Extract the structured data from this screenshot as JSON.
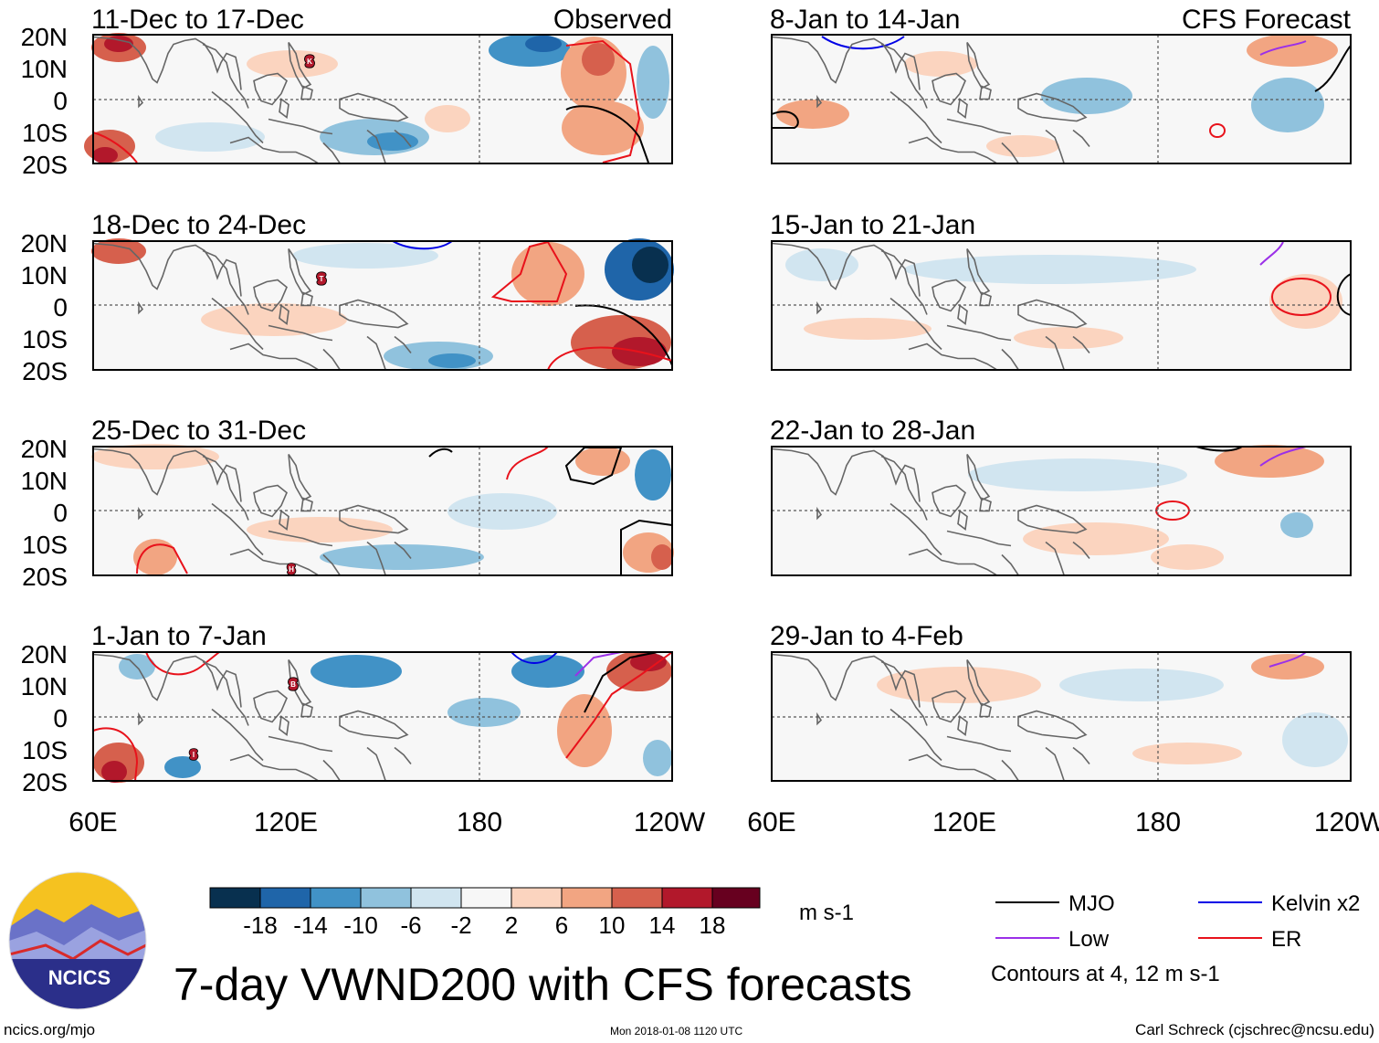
{
  "figure": {
    "title": "7-day VWND200 with CFS forecasts",
    "colors": {
      "contour_levels": [
        -18,
        -14,
        -10,
        -6,
        -2,
        2,
        6,
        10,
        14,
        18
      ],
      "palette": [
        "#08304f",
        "#1f65a9",
        "#4192c6",
        "#90c2dd",
        "#d1e5f0",
        "#f7f7f7",
        "#fbd4bf",
        "#f2a582",
        "#d6604d",
        "#b2182b",
        "#67001f"
      ],
      "coast": "#666666",
      "mjo": "#000000",
      "kelvin": "#0000e6",
      "low": "#9b30e8",
      "er": "#e8121b"
    }
  },
  "axes": {
    "lat_labels": [
      "20N",
      "10N",
      "0",
      "10S",
      "20S"
    ],
    "lon_labels": [
      "60E",
      "120E",
      "180",
      "120W"
    ]
  },
  "panels_left": [
    {
      "period": "11-Dec to 17-Dec",
      "tag": "Observed"
    },
    {
      "period": "18-Dec to 24-Dec"
    },
    {
      "period": "25-Dec to 31-Dec"
    },
    {
      "period": "1-Jan to 7-Jan"
    }
  ],
  "panels_right": [
    {
      "period": "8-Jan to 14-Jan",
      "tag": "CFS Forecast"
    },
    {
      "period": "15-Jan to 21-Jan"
    },
    {
      "period": "22-Jan to 28-Jan"
    },
    {
      "period": "29-Jan to 4-Feb"
    }
  ],
  "colorbar": {
    "unit": "m s-1",
    "tick_labels": [
      "-18",
      "-14",
      "-10",
      "-6",
      "-2",
      "2",
      "6",
      "10",
      "14",
      "18"
    ]
  },
  "legend": {
    "mjo": "MJO",
    "kelvin": "Kelvin x2",
    "low": "Low",
    "er": "ER",
    "note": "Contours at 4, 12 m s-1"
  },
  "logo": {
    "text": "NCICS"
  },
  "footer": {
    "url": "ncics.org/mjo",
    "timestamp": "Mon 2018-01-08 1120 UTC",
    "author": "Carl Schreck (cjschrec@ncsu.edu)"
  },
  "cyclone_markers": [
    "K",
    "T",
    "H",
    "B",
    "I"
  ]
}
